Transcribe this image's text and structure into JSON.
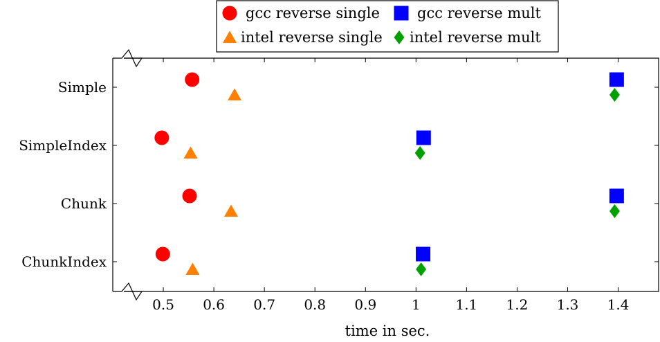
{
  "chart_data": {
    "type": "scatter",
    "title": "",
    "xlabel": "time in sec.",
    "ylabel": "",
    "xlim": [
      0.4,
      1.48
    ],
    "x_ticks": [
      "0.5",
      "0.6",
      "0.7",
      "0.8",
      "0.9",
      "1",
      "1.1",
      "1.2",
      "1.3",
      "1.4"
    ],
    "categories": [
      "Simple",
      "SimpleIndex",
      "Chunk",
      "ChunkIndex"
    ],
    "axis_break": "x-left",
    "grid": false,
    "legend_position": "top-center",
    "series": [
      {
        "name": "gcc reverse single",
        "marker": "circle",
        "color": "#ff0000",
        "offset": -1,
        "x": [
          0.557,
          0.497,
          0.552,
          0.499
        ]
      },
      {
        "name": "gcc reverse mult",
        "marker": "square",
        "color": "#0000ff",
        "offset": -1,
        "x": [
          1.397,
          1.015,
          1.397,
          1.014
        ]
      },
      {
        "name": "intel reverse single",
        "marker": "triangle",
        "color": "#ff8000",
        "offset": 1,
        "x": [
          0.641,
          0.554,
          0.634,
          0.558
        ]
      },
      {
        "name": "intel reverse mult",
        "marker": "diamond",
        "color": "#00a000",
        "offset": 1,
        "x": [
          1.393,
          1.008,
          1.393,
          1.01
        ]
      }
    ]
  }
}
